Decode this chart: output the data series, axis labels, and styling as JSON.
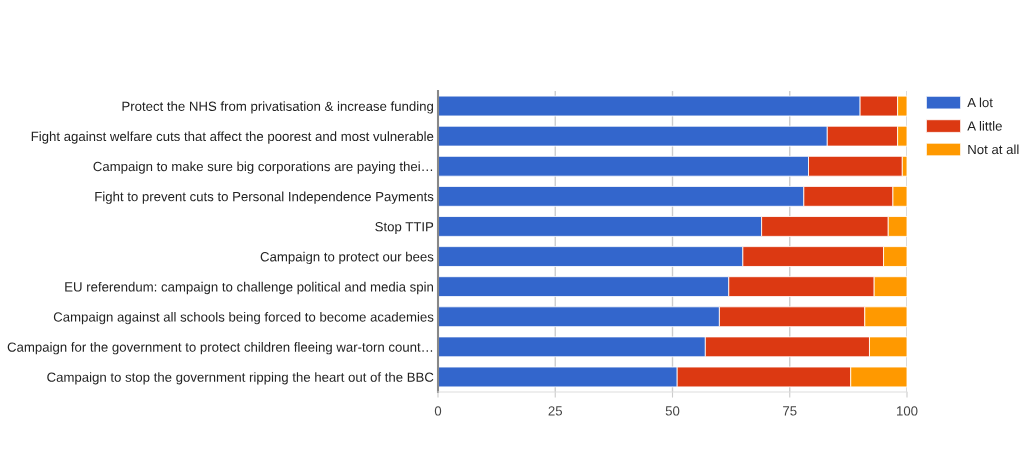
{
  "chart_data": {
    "type": "bar",
    "orientation": "horizontal",
    "stacked": true,
    "categories": [
      "Protect the NHS from privatisation & increase funding",
      "Fight against welfare cuts that affect the poorest and most vulnerable",
      "Campaign to make sure big corporations are paying thei…",
      "Fight to prevent cuts to Personal Independence Payments",
      "Stop TTIP",
      "Campaign to protect our bees",
      "EU referendum: campaign to challenge political and media spin",
      "Campaign against all schools being forced to become academies",
      "Campaign for the government to protect children fleeing war-torn count…",
      "Campaign to stop the government ripping the heart out of the BBC"
    ],
    "series": [
      {
        "name": "A lot",
        "color": "#3366cc",
        "values": [
          90,
          83,
          79,
          78,
          69,
          65,
          62,
          60,
          57,
          51
        ]
      },
      {
        "name": "A little",
        "color": "#dc3912",
        "values": [
          8,
          15,
          20,
          19,
          27,
          30,
          31,
          31,
          35,
          37
        ]
      },
      {
        "name": "Not at all",
        "color": "#ff9900",
        "values": [
          2,
          2,
          1,
          3,
          4,
          5,
          7,
          9,
          8,
          12
        ]
      }
    ],
    "xlim": [
      0,
      100
    ],
    "xticks": [
      0,
      25,
      50,
      75,
      100
    ],
    "grid": "x",
    "legend": "top right"
  }
}
